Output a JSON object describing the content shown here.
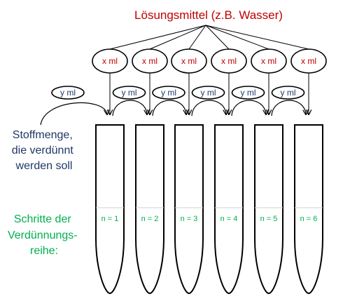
{
  "solvent_label": "Lösungsmittel (z.B. Wasser)",
  "x_ml_label": "x ml",
  "y_ml_label": "y ml",
  "substance_label": [
    "Stoffmenge,",
    "die verdünnt",
    "werden soll"
  ],
  "steps_label": [
    "Schritte der",
    "Verdünnungs-",
    "reihe:"
  ],
  "tubes": [
    {
      "n_label": "n = 1"
    },
    {
      "n_label": "n = 2"
    },
    {
      "n_label": "n = 3"
    },
    {
      "n_label": "n = 4"
    },
    {
      "n_label": "n = 5"
    },
    {
      "n_label": "n = 6"
    }
  ],
  "colors": {
    "solvent_text": "#c00000",
    "transfer_text": "#1f3864",
    "steps_text": "#00b050",
    "stroke": "#000000"
  }
}
